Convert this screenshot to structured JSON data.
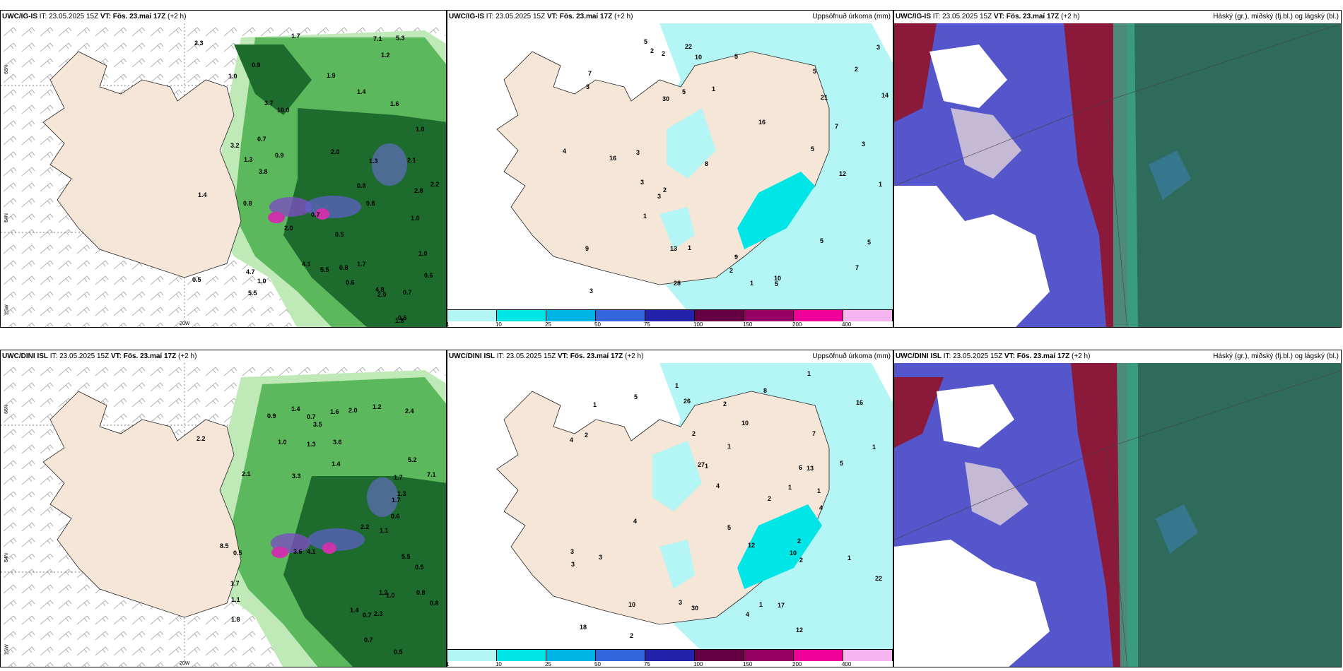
{
  "panels": {
    "top_left": {
      "model": "UWC/IG-IS",
      "it": "IT: 23.05.2025 15Z",
      "vt": "VT: Fös. 23.maí 17Z",
      "lead": "(+2 h)",
      "right": ""
    },
    "top_mid": {
      "model": "UWC/IG-IS",
      "it": "IT: 23.05.2025 15Z",
      "vt": "VT: Fös. 23.maí 17Z",
      "lead": "(+2 h)",
      "right": "Uppsöfnuð úrkoma (mm)"
    },
    "top_right": {
      "model": "UWC/IG-IS",
      "it": "IT: 23.05.2025 15Z",
      "vt": "VT: Fös. 23.maí 17Z",
      "lead": "(+2 h)",
      "right": "Háský (gr.), miðský (fj.bl.) og lágský (bl.)"
    },
    "bottom_left": {
      "model": "UWC/DINI ISL",
      "it": "IT: 23.05.2025 15Z",
      "vt": "VT: Fös. 23.maí 17Z",
      "lead": "(+2 h)",
      "right": ""
    },
    "bottom_mid": {
      "model": "UWC/DINI ISL",
      "it": "IT: 23.05.2025 15Z",
      "vt": "VT: Fös. 23.maí 17Z",
      "lead": "(+2 h)",
      "right": "Uppsöfnuð úrkoma (mm)"
    },
    "bottom_right": {
      "model": "UWC/DINI ISL",
      "it": "IT: 23.05.2025 15Z",
      "vt": "VT: Fös. 23.maí 17Z",
      "lead": "(+2 h)",
      "right": "Háský (gr.), miðský (fj.bl.) og lágský (bl.)"
    }
  },
  "axis_labels": {
    "lat66": "66N",
    "lat64": "64N",
    "lon20": "20W",
    "lon25": "25W"
  },
  "legend": {
    "colors": [
      "#b4f5f5",
      "#00e6e6",
      "#00b4e6",
      "#3366dd",
      "#2222aa",
      "#660044",
      "#990066",
      "#ee0099",
      "#f5b4f0"
    ],
    "ticks": [
      "1",
      "10",
      "25",
      "50",
      "75",
      "100",
      "150",
      "200",
      "400"
    ]
  },
  "map_colors": {
    "land": "#f5e6d8",
    "sea": "#ffffff",
    "precip_light": "#b4f5f5",
    "precip_mid": "#00e6e6",
    "green_light": "#bfeab8",
    "green_mid": "#5cb85c",
    "green_dark": "#1e6b2e",
    "cloud_blue": "#5555cc",
    "cloud_red": "#8b1a3a",
    "cloud_teal": "#2e6b5a"
  },
  "values": {
    "tl": [
      "0.8",
      "0.8",
      "2.1",
      "0.7",
      "1.4",
      "0.5",
      "1.0",
      "0.9",
      "0.8",
      "1.0",
      "2.2",
      "0.6",
      "1.0",
      "0.6",
      "0.7",
      "0.8",
      "0.5",
      "1.2",
      "0.7",
      "1.3",
      "1.3",
      "2.8",
      "3.2",
      "4.1",
      "5.5",
      "4.8",
      "3.8",
      "7.1",
      "10.0",
      "5.5",
      "1.6",
      "1.0",
      "1.9",
      "2.0",
      "1.8",
      "1.7",
      "1.0",
      "1.7",
      "0.9",
      "0.6",
      "3.7",
      "2.0",
      "4.7",
      "5.3",
      "2.3",
      "1.4",
      "2.0"
    ],
    "tm": [
      "4",
      "5",
      "2",
      "1",
      "2",
      "3",
      "3",
      "3",
      "2",
      "5",
      "1",
      "5",
      "1",
      "7",
      "9",
      "2",
      "5",
      "2",
      "10",
      "8",
      "1",
      "7",
      "5",
      "1",
      "5",
      "14",
      "16",
      "12",
      "10",
      "30",
      "28",
      "22",
      "21",
      "16",
      "3",
      "5",
      "3",
      "3",
      "3",
      "5",
      "7",
      "9",
      "13"
    ],
    "bl": [
      "0.7",
      "1.1",
      "2.4",
      "1.4",
      "1.3",
      "1.0",
      "0.7",
      "0.6",
      "0.5",
      "0.8",
      "0.5",
      "0.8",
      "1.0",
      "0.5",
      "0.7",
      "3.5",
      "1.8",
      "3.6",
      "3.3",
      "4.1",
      "5.2",
      "5.5",
      "8.5",
      "7.1",
      "2.1",
      "1.4",
      "1.7",
      "2.3",
      "2.2",
      "1.2",
      "1.3",
      "0.9",
      "1.1",
      "1.7",
      "1.4",
      "2.0",
      "2.2",
      "1.7",
      "1.6",
      "1.2",
      "3.6"
    ],
    "bm": [
      "1",
      "1",
      "5",
      "3",
      "1",
      "1",
      "2",
      "2",
      "3",
      "10",
      "4",
      "1",
      "3",
      "1",
      "1",
      "4",
      "5",
      "2",
      "12",
      "10",
      "8",
      "1",
      "6",
      "2",
      "7",
      "2",
      "3",
      "5",
      "13",
      "10",
      "26",
      "27",
      "30",
      "17",
      "22",
      "16",
      "18",
      "12",
      "2",
      "1",
      "4",
      "4",
      "4",
      "2",
      "1"
    ]
  }
}
